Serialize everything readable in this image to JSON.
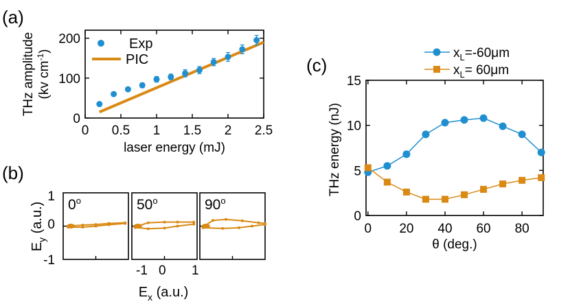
{
  "colors": {
    "blue": "#1f8fd0",
    "orange": "#d98914",
    "axis": "#000000"
  },
  "panel_labels": {
    "a": "(a)",
    "b": "(b)",
    "c": "(c)"
  },
  "chart_data": [
    {
      "id": "a",
      "type": "scatter",
      "xlabel": "laser energy (mJ)",
      "ylabel_line1": "THz amplitude",
      "ylabel_line2_pre": "(kv cm",
      "ylabel_line2_sup": "-1",
      "ylabel_line2_post": ")",
      "xlim": [
        0,
        2.5
      ],
      "ylim": [
        0,
        220
      ],
      "xticks": [
        0,
        0.5,
        1,
        1.5,
        2,
        2.5
      ],
      "xtick_labels": [
        "0",
        "0.5",
        "1",
        "1.5",
        "2",
        "2.5"
      ],
      "yticks": [
        0,
        100,
        200
      ],
      "ytick_labels": [
        "0",
        "100",
        "200"
      ],
      "series": [
        {
          "name": "Exp",
          "style": "points-errorbars",
          "x": [
            0.2,
            0.4,
            0.6,
            0.8,
            1.0,
            1.2,
            1.4,
            1.6,
            1.8,
            2.0,
            2.2,
            2.4
          ],
          "y": [
            35,
            60,
            72,
            82,
            97,
            103,
            112,
            120,
            140,
            153,
            172,
            195
          ],
          "err": [
            4,
            4,
            4,
            6,
            7,
            7,
            9,
            9,
            9,
            11,
            11,
            12
          ]
        },
        {
          "name": "PIC",
          "style": "line",
          "x": [
            0.2,
            2.5
          ],
          "y": [
            15,
            190
          ]
        }
      ]
    },
    {
      "id": "b",
      "type": "line",
      "xlabel_main": "E",
      "xlabel_sub": "x",
      "xlabel_post": " (a.u.)",
      "ylabel_main": "E",
      "ylabel_sub": "y",
      "ylabel_post": " (a.u.)",
      "xlim": [
        -1,
        1
      ],
      "ylim": [
        -1,
        1
      ],
      "xtick_labels": [
        "-1",
        "0",
        "1"
      ],
      "ytick_labels": [
        "1",
        "0",
        "-1"
      ],
      "subplots": [
        {
          "angle_value": "0",
          "angle_sup": "o",
          "upper_x": [
            -0.85,
            -0.4,
            0.0,
            0.4,
            0.9
          ],
          "upper_y": [
            0.0,
            0.03,
            0.05,
            0.08,
            0.1
          ],
          "lower_x": [
            0.9,
            0.4,
            0.0,
            -0.4,
            -0.85
          ],
          "lower_y": [
            0.08,
            0.04,
            0.0,
            -0.03,
            -0.03
          ]
        },
        {
          "angle_value": "50",
          "angle_sup": "o",
          "upper_x": [
            -0.9,
            -0.5,
            0.0,
            0.4,
            0.9
          ],
          "upper_y": [
            -0.02,
            0.1,
            0.12,
            0.12,
            0.12
          ],
          "lower_x": [
            0.9,
            0.4,
            0.0,
            -0.5,
            -0.9
          ],
          "lower_y": [
            0.06,
            0.0,
            -0.06,
            -0.08,
            -0.04
          ]
        },
        {
          "angle_value": "90",
          "angle_sup": "o",
          "upper_x": [
            -0.9,
            -0.6,
            -0.2,
            0.3,
            0.8,
            1.0
          ],
          "upper_y": [
            -0.02,
            0.17,
            0.2,
            0.16,
            0.1,
            0.08
          ],
          "lower_x": [
            1.0,
            0.6,
            0.2,
            -0.3,
            -0.9
          ],
          "lower_y": [
            0.05,
            0.0,
            -0.05,
            -0.07,
            -0.05
          ]
        }
      ]
    },
    {
      "id": "c",
      "type": "line",
      "xlabel": "θ (deg.)",
      "ylabel": "THz energy (nJ)",
      "xlim": [
        -1,
        91
      ],
      "ylim": [
        0,
        15
      ],
      "xticks": [
        0,
        20,
        40,
        60,
        80
      ],
      "xtick_labels": [
        "0",
        "20",
        "40",
        "60",
        "80"
      ],
      "yticks": [
        0,
        5,
        10,
        15
      ],
      "ytick_labels": [
        "0",
        "5",
        "10",
        "15"
      ],
      "x": [
        0,
        10,
        20,
        30,
        40,
        50,
        60,
        70,
        80,
        90
      ],
      "series": [
        {
          "name_main": "x",
          "name_sub": "L",
          "name_post": "=-60μm",
          "marker": "circle",
          "values": [
            4.8,
            5.5,
            6.8,
            9.0,
            10.3,
            10.6,
            10.8,
            9.9,
            9.0,
            7.0
          ]
        },
        {
          "name_main": "x",
          "name_sub": "L",
          "name_post": "= 60μm",
          "marker": "square",
          "values": [
            5.3,
            3.7,
            2.6,
            1.8,
            1.8,
            2.3,
            2.9,
            3.5,
            3.9,
            4.2
          ]
        }
      ]
    }
  ]
}
